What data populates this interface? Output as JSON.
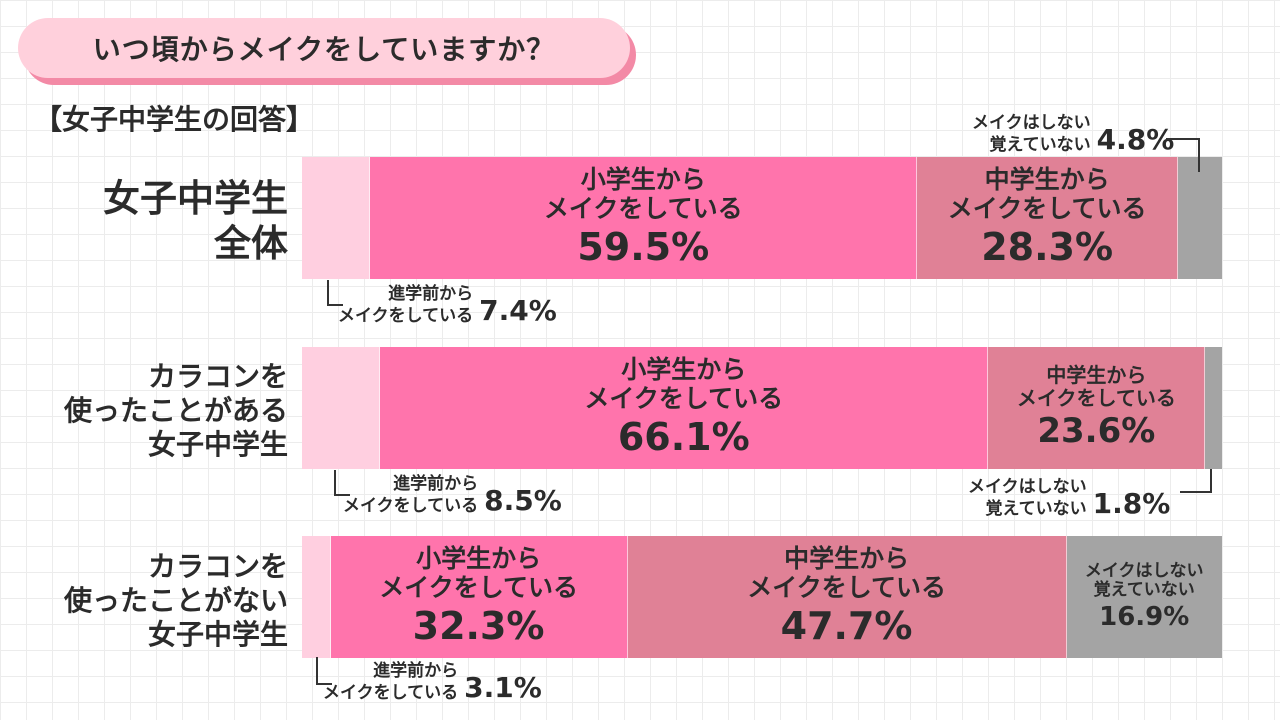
{
  "title": "いつ頃からメイクをしていますか？",
  "subtitle": "【女子中学生の回答】",
  "colors": {
    "before_junior_high": "#ffcfe0",
    "elementary": "#ff74ac",
    "junior_high": "#e08196",
    "none": "#a4a4a4"
  },
  "rows": [
    {
      "label_lines": [
        "女子中学生",
        "全体"
      ],
      "seg_before": {
        "value": "7.4%",
        "label_lines": [
          "進学前から",
          "メイクをしている"
        ]
      },
      "seg_elem": {
        "value": "59.5%",
        "label_lines": [
          "小学生から",
          "メイクをしている"
        ]
      },
      "seg_jh": {
        "value": "28.3%",
        "label_lines": [
          "中学生から",
          "メイクをしている"
        ]
      },
      "seg_none": {
        "value": "4.8%",
        "label_lines": [
          "メイクはしない",
          "覚えていない"
        ]
      }
    },
    {
      "label_lines": [
        "カラコンを",
        "使ったことがある",
        "女子中学生"
      ],
      "seg_before": {
        "value": "8.5%",
        "label_lines": [
          "進学前から",
          "メイクをしている"
        ]
      },
      "seg_elem": {
        "value": "66.1%",
        "label_lines": [
          "小学生から",
          "メイクをしている"
        ]
      },
      "seg_jh": {
        "value": "23.6%",
        "label_lines": [
          "中学生から",
          "メイクをしている"
        ]
      },
      "seg_none": {
        "value": "1.8%",
        "label_lines": [
          "メイクはしない",
          "覚えていない"
        ]
      }
    },
    {
      "label_lines": [
        "カラコンを",
        "使ったことがない",
        "女子中学生"
      ],
      "seg_before": {
        "value": "3.1%",
        "label_lines": [
          "進学前から",
          "メイクをしている"
        ]
      },
      "seg_elem": {
        "value": "32.3%",
        "label_lines": [
          "小学生から",
          "メイクをしている"
        ]
      },
      "seg_jh": {
        "value": "47.7%",
        "label_lines": [
          "中学生から",
          "メイクをしている"
        ]
      },
      "seg_none": {
        "value": "16.9%",
        "label_lines": [
          "メイクはしない",
          "覚えていない"
        ]
      }
    }
  ],
  "chart_data": {
    "type": "bar",
    "orientation": "horizontal",
    "stacked": true,
    "unit": "%",
    "categories": [
      "女子中学生全体",
      "カラコンを使ったことがある女子中学生",
      "カラコンを使ったことがない女子中学生"
    ],
    "series": [
      {
        "name": "進学前からメイクをしている",
        "values": [
          7.4,
          8.5,
          3.1
        ]
      },
      {
        "name": "小学生からメイクをしている",
        "values": [
          59.5,
          66.1,
          32.3
        ]
      },
      {
        "name": "中学生からメイクをしている",
        "values": [
          28.3,
          23.6,
          47.7
        ]
      },
      {
        "name": "メイクはしない 覚えていない",
        "values": [
          4.8,
          1.8,
          16.9
        ]
      }
    ],
    "xlim": [
      0,
      100
    ]
  }
}
